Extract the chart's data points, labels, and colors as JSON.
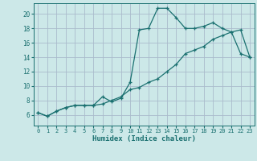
{
  "xlabel": "Humidex (Indice chaleur)",
  "background_color": "#cce8e8",
  "grid_color": "#aabbcc",
  "line_color": "#1a7070",
  "xlim": [
    -0.5,
    23.5
  ],
  "ylim": [
    4.5,
    21.5
  ],
  "x_ticks": [
    0,
    1,
    2,
    3,
    4,
    5,
    6,
    7,
    8,
    9,
    10,
    11,
    12,
    13,
    14,
    15,
    16,
    17,
    18,
    19,
    20,
    21,
    22,
    23
  ],
  "y_ticks": [
    6,
    8,
    10,
    12,
    14,
    16,
    18,
    20
  ],
  "line1_x": [
    0,
    1,
    2,
    3,
    4,
    5,
    6,
    7,
    8,
    9,
    10,
    11,
    12,
    13,
    14,
    15,
    16,
    17,
    18,
    19,
    20,
    21,
    22,
    23
  ],
  "line1_y": [
    6.3,
    5.8,
    6.5,
    7.0,
    7.3,
    7.3,
    7.3,
    8.5,
    7.8,
    8.3,
    10.5,
    17.8,
    18.0,
    20.8,
    20.8,
    19.5,
    18.0,
    18.0,
    18.3,
    18.8,
    18.0,
    17.5,
    14.5,
    14.0
  ],
  "line2_x": [
    0,
    1,
    2,
    3,
    4,
    5,
    6,
    7,
    8,
    9,
    10,
    11,
    12,
    13,
    14,
    15,
    16,
    17,
    18,
    19,
    20,
    21,
    22,
    23
  ],
  "line2_y": [
    6.3,
    5.8,
    6.5,
    7.0,
    7.3,
    7.3,
    7.3,
    7.5,
    8.0,
    8.5,
    9.5,
    9.8,
    10.5,
    11.0,
    12.0,
    13.0,
    14.5,
    15.0,
    15.5,
    16.5,
    17.0,
    17.5,
    17.8,
    14.0
  ]
}
